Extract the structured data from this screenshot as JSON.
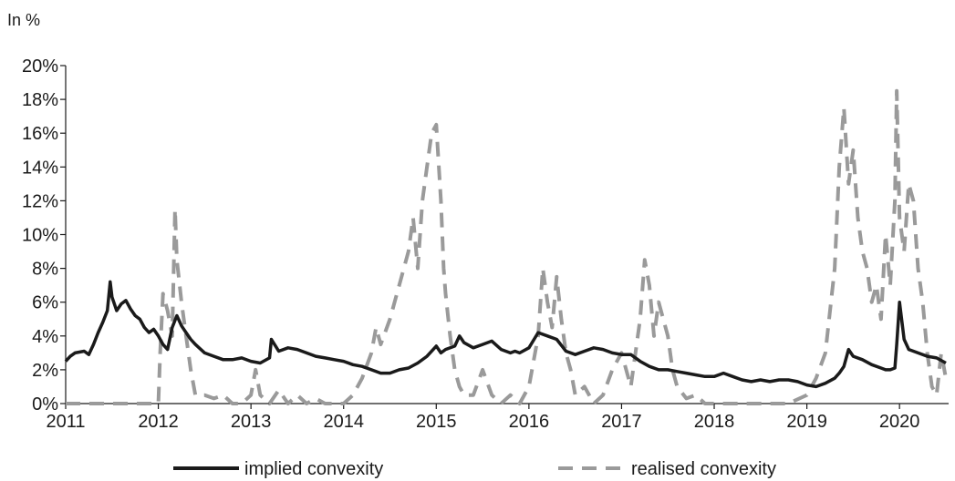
{
  "chart_data": {
    "type": "line",
    "unit_label": "In %",
    "y_range": [
      0,
      20
    ],
    "y_tick_labels": [
      "0%",
      "2%",
      "4%",
      "6%",
      "8%",
      "10%",
      "12%",
      "14%",
      "16%",
      "18%",
      "20%"
    ],
    "y_tick_values": [
      0,
      2,
      4,
      6,
      8,
      10,
      12,
      14,
      16,
      18,
      20
    ],
    "x_range": [
      2011.0,
      2020.53
    ],
    "x_tick_labels": [
      "2011",
      "2012",
      "2013",
      "2014",
      "2015",
      "2016",
      "2017",
      "2018",
      "2019",
      "2020"
    ],
    "x_tick_values": [
      2011,
      2012,
      2013,
      2014,
      2015,
      2016,
      2017,
      2018,
      2019,
      2020
    ],
    "grid": false,
    "legend_position": "bottom",
    "series": [
      {
        "name": "implied convexity",
        "color": "#1a1a1a",
        "dash": "solid",
        "x": [
          2011.0,
          2011.05,
          2011.1,
          2011.2,
          2011.25,
          2011.3,
          2011.35,
          2011.4,
          2011.45,
          2011.48,
          2011.5,
          2011.55,
          2011.6,
          2011.65,
          2011.7,
          2011.75,
          2011.8,
          2011.85,
          2011.9,
          2011.95,
          2012.0,
          2012.05,
          2012.1,
          2012.15,
          2012.2,
          2012.25,
          2012.3,
          2012.35,
          2012.4,
          2012.5,
          2012.6,
          2012.7,
          2012.8,
          2012.9,
          2013.0,
          2013.1,
          2013.2,
          2013.22,
          2013.3,
          2013.4,
          2013.5,
          2013.6,
          2013.7,
          2013.8,
          2013.9,
          2014.0,
          2014.1,
          2014.2,
          2014.3,
          2014.4,
          2014.5,
          2014.6,
          2014.7,
          2014.8,
          2014.9,
          2015.0,
          2015.05,
          2015.1,
          2015.2,
          2015.25,
          2015.3,
          2015.4,
          2015.5,
          2015.6,
          2015.7,
          2015.8,
          2015.85,
          2015.9,
          2016.0,
          2016.1,
          2016.2,
          2016.3,
          2016.4,
          2016.5,
          2016.6,
          2016.7,
          2016.8,
          2016.9,
          2017.0,
          2017.1,
          2017.2,
          2017.3,
          2017.4,
          2017.5,
          2017.6,
          2017.7,
          2017.8,
          2017.9,
          2018.0,
          2018.1,
          2018.2,
          2018.3,
          2018.4,
          2018.5,
          2018.6,
          2018.7,
          2018.8,
          2018.9,
          2019.0,
          2019.1,
          2019.2,
          2019.3,
          2019.35,
          2019.4,
          2019.45,
          2019.5,
          2019.6,
          2019.7,
          2019.8,
          2019.85,
          2019.9,
          2019.95,
          2019.97,
          2020.0,
          2020.05,
          2020.1,
          2020.2,
          2020.3,
          2020.4,
          2020.5
        ],
        "values": [
          2.5,
          2.8,
          3.0,
          3.1,
          2.9,
          3.5,
          4.2,
          4.8,
          5.5,
          7.2,
          6.3,
          5.5,
          5.9,
          6.1,
          5.6,
          5.2,
          5.0,
          4.5,
          4.2,
          4.4,
          4.0,
          3.5,
          3.2,
          4.5,
          5.2,
          4.6,
          4.2,
          3.8,
          3.5,
          3.0,
          2.8,
          2.6,
          2.6,
          2.7,
          2.5,
          2.4,
          2.7,
          3.8,
          3.1,
          3.3,
          3.2,
          3.0,
          2.8,
          2.7,
          2.6,
          2.5,
          2.3,
          2.2,
          2.0,
          1.8,
          1.8,
          2.0,
          2.1,
          2.4,
          2.8,
          3.4,
          3.0,
          3.2,
          3.4,
          4.0,
          3.6,
          3.3,
          3.5,
          3.7,
          3.2,
          3.0,
          3.1,
          3.0,
          3.3,
          4.2,
          4.0,
          3.8,
          3.1,
          2.9,
          3.1,
          3.3,
          3.2,
          3.0,
          2.9,
          2.9,
          2.5,
          2.2,
          2.0,
          2.0,
          1.9,
          1.8,
          1.7,
          1.6,
          1.6,
          1.8,
          1.6,
          1.4,
          1.3,
          1.4,
          1.3,
          1.4,
          1.4,
          1.3,
          1.1,
          1.0,
          1.2,
          1.5,
          1.8,
          2.2,
          3.2,
          2.8,
          2.6,
          2.3,
          2.1,
          2.0,
          2.0,
          2.1,
          3.5,
          6.0,
          3.8,
          3.2,
          3.0,
          2.8,
          2.7,
          2.4
        ]
      },
      {
        "name": "realised convexity",
        "color": "#9a9a9a",
        "dash": "dashed",
        "x": [
          2011.0,
          2011.5,
          2011.95,
          2012.0,
          2012.02,
          2012.05,
          2012.1,
          2012.15,
          2012.18,
          2012.2,
          2012.25,
          2012.3,
          2012.35,
          2012.4,
          2012.5,
          2012.6,
          2012.7,
          2012.8,
          2012.9,
          2013.0,
          2013.05,
          2013.1,
          2013.2,
          2013.3,
          2013.4,
          2013.5,
          2013.6,
          2013.7,
          2013.8,
          2014.0,
          2014.1,
          2014.2,
          2014.3,
          2014.35,
          2014.4,
          2014.5,
          2014.6,
          2014.7,
          2014.75,
          2014.8,
          2014.85,
          2014.9,
          2014.95,
          2015.0,
          2015.05,
          2015.08,
          2015.1,
          2015.15,
          2015.2,
          2015.25,
          2015.3,
          2015.4,
          2015.5,
          2015.6,
          2015.7,
          2015.8,
          2015.9,
          2016.0,
          2016.1,
          2016.15,
          2016.2,
          2016.25,
          2016.3,
          2016.35,
          2016.4,
          2016.45,
          2016.5,
          2016.6,
          2016.7,
          2016.8,
          2016.9,
          2017.0,
          2017.1,
          2017.2,
          2017.25,
          2017.3,
          2017.35,
          2017.4,
          2017.5,
          2017.55,
          2017.6,
          2017.7,
          2017.8,
          2017.9,
          2018.0,
          2018.2,
          2018.4,
          2018.6,
          2018.8,
          2019.0,
          2019.1,
          2019.2,
          2019.25,
          2019.3,
          2019.35,
          2019.4,
          2019.45,
          2019.5,
          2019.55,
          2019.6,
          2019.65,
          2019.7,
          2019.75,
          2019.8,
          2019.85,
          2019.9,
          2019.95,
          2019.97,
          2020.0,
          2020.05,
          2020.1,
          2020.15,
          2020.2,
          2020.25,
          2020.3,
          2020.35,
          2020.4,
          2020.45,
          2020.5
        ],
        "values": [
          0.0,
          0.0,
          0.0,
          0.0,
          3.0,
          6.5,
          5.5,
          4.0,
          11.5,
          8.5,
          6.0,
          4.0,
          2.0,
          0.5,
          0.5,
          0.3,
          0.5,
          0.0,
          0.0,
          0.5,
          2.0,
          0.5,
          0.0,
          0.8,
          0.0,
          0.5,
          0.0,
          0.3,
          0.0,
          0.0,
          0.5,
          1.5,
          3.0,
          4.5,
          3.5,
          5.0,
          7.0,
          9.0,
          11.0,
          8.0,
          12.0,
          14.0,
          16.0,
          16.5,
          12.0,
          8.0,
          6.5,
          4.0,
          2.0,
          1.0,
          0.5,
          0.5,
          2.0,
          0.5,
          0.0,
          0.5,
          0.0,
          1.0,
          4.0,
          8.0,
          6.0,
          4.5,
          7.5,
          5.0,
          3.0,
          2.0,
          0.5,
          1.0,
          0.0,
          0.5,
          2.0,
          3.0,
          1.0,
          5.0,
          8.5,
          7.0,
          4.0,
          6.0,
          4.0,
          2.0,
          1.0,
          0.3,
          0.5,
          0.0,
          0.0,
          0.0,
          0.0,
          0.0,
          0.0,
          0.5,
          1.5,
          3.0,
          5.5,
          8.0,
          14.0,
          17.5,
          13.0,
          15.0,
          11.0,
          9.0,
          8.0,
          6.0,
          7.0,
          5.0,
          10.0,
          7.0,
          12.0,
          18.5,
          11.0,
          9.0,
          13.0,
          12.0,
          8.0,
          6.0,
          3.0,
          1.0,
          0.5,
          3.0,
          1.5
        ]
      }
    ]
  }
}
